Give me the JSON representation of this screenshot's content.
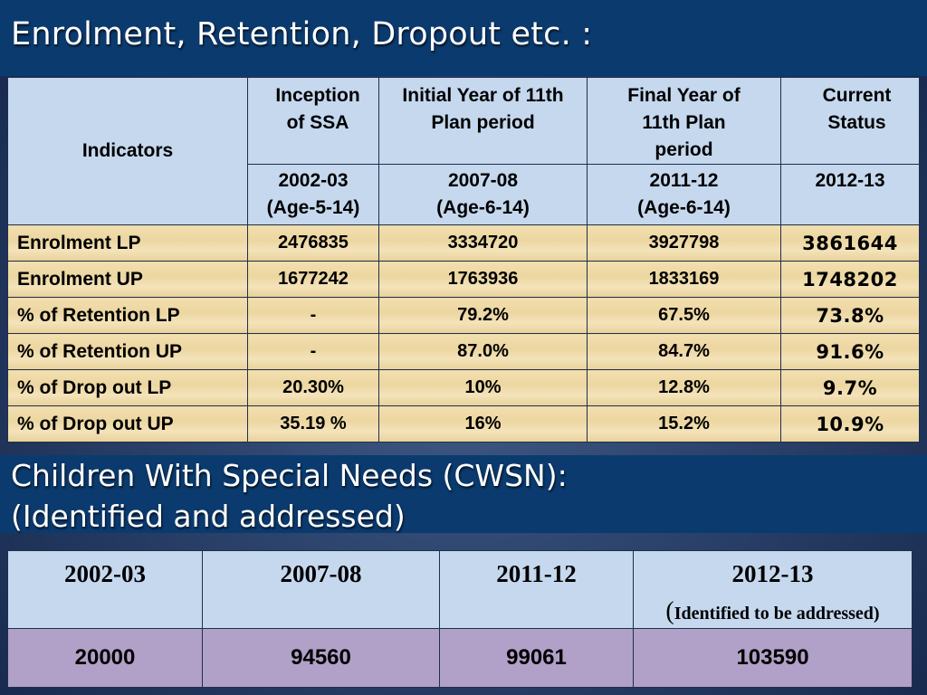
{
  "slide_title": "Enrolment, Retention, Dropout etc. :",
  "main_table": {
    "indicator_header": "Indicators",
    "periods": [
      {
        "label": "Inception of SSA",
        "year": "2002-03",
        "age": "(Age-5-14)"
      },
      {
        "label": "Initial Year of 11th Plan period",
        "year": "2007-08",
        "age": "(Age-6-14)"
      },
      {
        "label": "Final Year of 11th Plan period",
        "year": "2011-12",
        "age": "(Age-6-14)"
      },
      {
        "label": "Current Status",
        "year": "2012-13",
        "age": ""
      }
    ],
    "rows": [
      {
        "label": "Enrolment LP",
        "values": [
          "2476835",
          "3334720",
          "3927798",
          "3861644"
        ]
      },
      {
        "label": "Enrolment UP",
        "values": [
          "1677242",
          "1763936",
          "1833169",
          "1748202"
        ]
      },
      {
        "label": "% of Retention  LP",
        "values": [
          "-",
          "79.2%",
          "67.5%",
          "73.8%"
        ]
      },
      {
        "label": "% of Retention  UP",
        "values": [
          "-",
          "87.0%",
          "84.7%",
          "91.6%"
        ]
      },
      {
        "label": "% of Drop out LP",
        "values": [
          "20.30%",
          "10%",
          "12.8%",
          "9.7%"
        ]
      },
      {
        "label": "% of Drop out UP",
        "values": [
          "35.19 %",
          "16%",
          "15.2%",
          "10.9%"
        ]
      }
    ]
  },
  "cwsn": {
    "title_line1": "Children With Special Needs (CWSN):",
    "title_line2": "(Identified and addressed)",
    "years": [
      "2002-03",
      "2007-08",
      "2011-12",
      "2012-13"
    ],
    "note_paren": "(",
    "note_text": "Identified to be addressed)",
    "values": [
      "20000",
      "94560",
      "99061",
      "103590"
    ]
  }
}
